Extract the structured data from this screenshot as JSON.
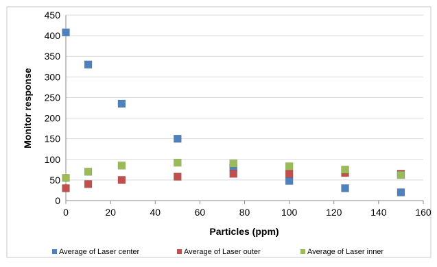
{
  "chart_data": {
    "type": "scatter",
    "title": "",
    "xlabel": "Particles (ppm)",
    "ylabel": "Monitor response",
    "xlim": [
      0,
      160
    ],
    "ylim": [
      0,
      450
    ],
    "xticks": [
      0,
      20,
      40,
      60,
      80,
      100,
      120,
      140,
      160
    ],
    "yticks": [
      0,
      50,
      100,
      150,
      200,
      250,
      300,
      350,
      400,
      450
    ],
    "grid": "horizontal",
    "legend_position": "bottom",
    "series": [
      {
        "name": "Average of Laser center",
        "color": "#4f81bd",
        "marker": "square",
        "x": [
          0,
          10,
          25,
          50,
          75,
          100,
          125,
          150
        ],
        "y": [
          408,
          330,
          235,
          150,
          80,
          48,
          30,
          20
        ]
      },
      {
        "name": "Average of Laser outer",
        "color": "#c0504d",
        "marker": "square",
        "x": [
          0,
          10,
          25,
          50,
          75,
          100,
          125,
          150
        ],
        "y": [
          30,
          40,
          50,
          58,
          65,
          65,
          67,
          65
        ]
      },
      {
        "name": "Average of Laser inner",
        "color": "#9bbb59",
        "marker": "square",
        "x": [
          0,
          10,
          25,
          50,
          75,
          100,
          125,
          150
        ],
        "y": [
          55,
          70,
          85,
          92,
          90,
          83,
          75,
          62
        ]
      }
    ]
  }
}
